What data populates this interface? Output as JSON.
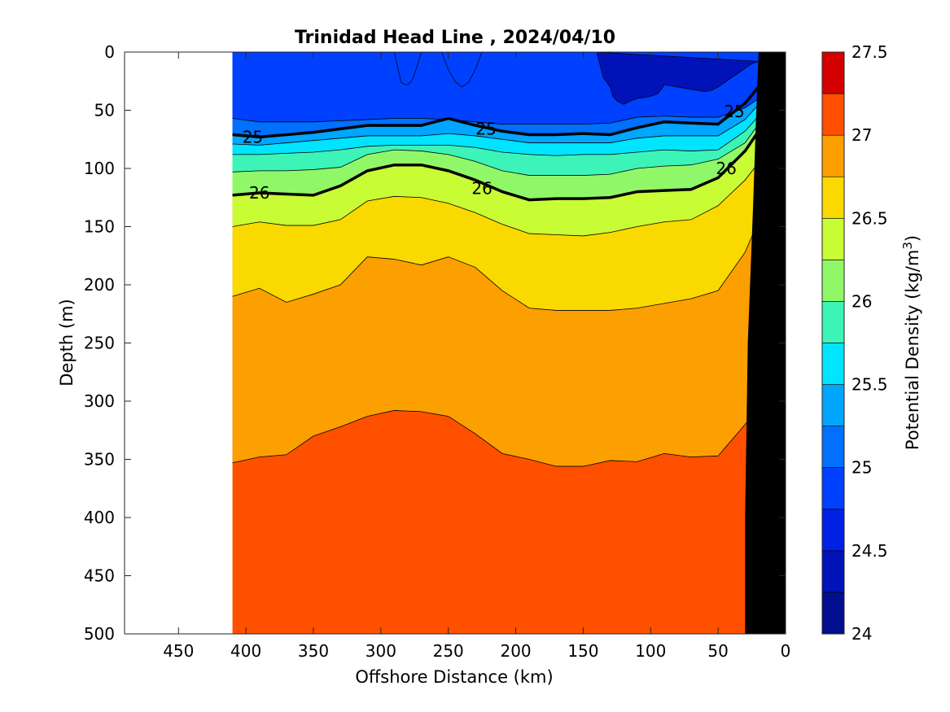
{
  "chart_data": {
    "type": "contourf",
    "title": "Trinidad Head Line , 2024/04/10",
    "xlabel": "Offshore Distance (km)",
    "ylabel": "Depth (m)",
    "xlim": [
      490,
      0
    ],
    "ylim": [
      0,
      500
    ],
    "x_reversed": true,
    "y_reversed": true,
    "x_ticks": [
      450,
      400,
      350,
      300,
      250,
      200,
      150,
      100,
      50,
      0
    ],
    "y_ticks": [
      0,
      50,
      100,
      150,
      200,
      250,
      300,
      350,
      400,
      450,
      500
    ],
    "data_extent_km": [
      410,
      20
    ],
    "colorbar": {
      "label": "Potential Density (kg/m",
      "label_sup": "3",
      "label_close": ")",
      "range": [
        24,
        27.5
      ],
      "tick_labels": [
        "24",
        "24.5",
        "25",
        "25.5",
        "26",
        "26.5",
        "27",
        "27.5"
      ],
      "tick_values": [
        24,
        24.5,
        25,
        25.5,
        26,
        26.5,
        27,
        27.5
      ],
      "level_step": 0.25,
      "colors": [
        "#000e8f",
        "#0012b8",
        "#0020e6",
        "#0040ff",
        "#0070ff",
        "#00a6ff",
        "#00e4ff",
        "#3cf4b8",
        "#90f868",
        "#c8fc34",
        "#fad900",
        "#fba000",
        "#ff5000",
        "#ff1c00",
        "#d40000"
      ]
    },
    "isopycnals": [
      {
        "sigma": 24.75,
        "x": [
          410,
          390,
          370,
          350,
          330,
          310,
          290,
          270,
          250,
          230,
          210,
          190,
          170,
          150,
          130,
          110,
          90,
          70,
          50,
          30,
          20
        ],
        "depth": [
          57,
          60,
          60,
          60,
          59,
          58,
          57,
          57,
          58,
          60,
          62,
          62,
          62,
          62,
          61,
          56,
          55,
          56,
          56,
          48,
          40
        ]
      },
      {
        "sigma": 25.0,
        "x": [
          410,
          390,
          370,
          350,
          330,
          310,
          290,
          270,
          250,
          230,
          210,
          190,
          170,
          150,
          130,
          110,
          90,
          70,
          50,
          30,
          20
        ],
        "depth": [
          71,
          73,
          71,
          69,
          66,
          63,
          63,
          63,
          57,
          63,
          68,
          71,
          71,
          70,
          71,
          65,
          60,
          61,
          62,
          44,
          30
        ],
        "bold": true
      },
      {
        "sigma": 25.25,
        "x": [
          410,
          390,
          370,
          350,
          330,
          310,
          290,
          270,
          250,
          230,
          210,
          190,
          170,
          150,
          130,
          110,
          90,
          70,
          50,
          30,
          20
        ],
        "depth": [
          79,
          80,
          78,
          76,
          74,
          72,
          72,
          72,
          70,
          72,
          75,
          78,
          78,
          78,
          78,
          74,
          72,
          72,
          72,
          58,
          45
        ]
      },
      {
        "sigma": 25.5,
        "x": [
          410,
          390,
          370,
          350,
          330,
          310,
          290,
          270,
          250,
          230,
          210,
          190,
          170,
          150,
          130,
          110,
          90,
          70,
          50,
          30,
          20
        ],
        "depth": [
          88,
          88,
          87,
          86,
          84,
          81,
          80,
          80,
          80,
          82,
          86,
          88,
          89,
          88,
          88,
          86,
          84,
          85,
          84,
          68,
          55
        ]
      },
      {
        "sigma": 25.75,
        "x": [
          410,
          390,
          370,
          350,
          330,
          310,
          290,
          270,
          250,
          230,
          210,
          190,
          170,
          150,
          130,
          110,
          90,
          70,
          50,
          30,
          20
        ],
        "depth": [
          103,
          102,
          102,
          101,
          99,
          88,
          84,
          85,
          88,
          94,
          102,
          106,
          106,
          106,
          105,
          100,
          98,
          97,
          92,
          78,
          62
        ]
      },
      {
        "sigma": 26.0,
        "x": [
          410,
          390,
          370,
          350,
          330,
          310,
          290,
          270,
          250,
          230,
          210,
          190,
          170,
          150,
          130,
          110,
          90,
          70,
          50,
          30,
          20
        ],
        "depth": [
          123,
          121,
          122,
          123,
          115,
          102,
          97,
          97,
          102,
          110,
          120,
          127,
          126,
          126,
          125,
          120,
          119,
          118,
          108,
          85,
          68
        ],
        "bold": true
      },
      {
        "sigma": 26.25,
        "x": [
          410,
          390,
          370,
          350,
          330,
          310,
          290,
          270,
          250,
          230,
          210,
          190,
          170,
          150,
          130,
          110,
          90,
          70,
          50,
          30,
          20
        ],
        "depth": [
          150,
          146,
          149,
          149,
          144,
          128,
          124,
          125,
          130,
          138,
          148,
          156,
          157,
          158,
          155,
          150,
          146,
          144,
          132,
          110,
          95
        ]
      },
      {
        "sigma": 26.5,
        "x": [
          410,
          390,
          370,
          350,
          330,
          310,
          290,
          270,
          250,
          230,
          210,
          190,
          170,
          150,
          130,
          110,
          90,
          70,
          50,
          30,
          20
        ],
        "depth": [
          210,
          203,
          215,
          208,
          200,
          176,
          178,
          183,
          176,
          185,
          205,
          220,
          222,
          222,
          222,
          220,
          216,
          212,
          205,
          172,
          145
        ]
      },
      {
        "sigma": 26.75,
        "x": [
          410,
          390,
          370,
          350,
          330,
          310,
          290,
          270,
          250,
          230,
          210,
          190,
          170,
          150,
          130,
          110,
          90,
          70,
          50,
          30,
          20
        ],
        "depth": [
          353,
          348,
          346,
          330,
          322,
          313,
          308,
          309,
          313,
          328,
          345,
          350,
          356,
          356,
          351,
          352,
          345,
          348,
          347,
          320,
          305
        ]
      }
    ],
    "contour_labels": [
      {
        "text": "25",
        "x": 395,
        "depth": 73
      },
      {
        "text": "25",
        "x": 222,
        "depth": 66
      },
      {
        "text": "25",
        "x": 38,
        "depth": 51
      },
      {
        "text": "26",
        "x": 390,
        "depth": 121
      },
      {
        "text": "26",
        "x": 225,
        "depth": 117
      },
      {
        "text": "26",
        "x": 44,
        "depth": 100
      }
    ],
    "surface_patches": [
      {
        "sigma": 24.5,
        "x": [
          295,
          280,
          275,
          270,
          265,
          258,
          252,
          240,
          235,
          230,
          225,
          220,
          215,
          210,
          200,
          190,
          180,
          170,
          160,
          150,
          140,
          130,
          120,
          115,
          110,
          105,
          100,
          95,
          90,
          85,
          80,
          75,
          70,
          65,
          60,
          55,
          50,
          45,
          40,
          35,
          30,
          25,
          20
        ],
        "depth": [
          0,
          0,
          0,
          0,
          0,
          0,
          0,
          0,
          0,
          0,
          0,
          0,
          0,
          0,
          0,
          0,
          0,
          0,
          0,
          0,
          0,
          0,
          0,
          0,
          0,
          0,
          0,
          0,
          0,
          0,
          0,
          0,
          0,
          0,
          0,
          0,
          0,
          0,
          0,
          0,
          0,
          0,
          0
        ]
      },
      {
        "sigma": 24.25,
        "x": [
          140,
          135,
          130,
          128,
          125,
          120,
          115,
          110,
          100,
          95,
          92,
          90,
          80,
          70,
          60,
          55,
          50,
          45,
          40,
          35,
          30,
          25,
          20
        ],
        "depth": [
          0,
          22,
          30,
          38,
          42,
          45,
          42,
          40,
          38,
          36,
          32,
          28,
          30,
          32,
          34,
          33,
          30,
          26,
          22,
          18,
          14,
          10,
          8
        ]
      },
      {
        "sigma": 24.75,
        "x": [
          290,
          285,
          282,
          280,
          278,
          276,
          274,
          272,
          270
        ],
        "depth": [
          0,
          26,
          28,
          28,
          26,
          22,
          15,
          8,
          0
        ]
      },
      {
        "sigma": 24.75,
        "x": [
          255,
          250,
          245,
          240,
          235,
          230,
          225
        ],
        "depth": [
          0,
          15,
          25,
          30,
          26,
          15,
          0
        ]
      }
    ],
    "bottom": {
      "x": [
        20,
        22,
        24,
        28,
        30,
        30,
        20
      ],
      "depth": [
        0,
        60,
        130,
        250,
        400,
        500,
        500
      ]
    }
  }
}
